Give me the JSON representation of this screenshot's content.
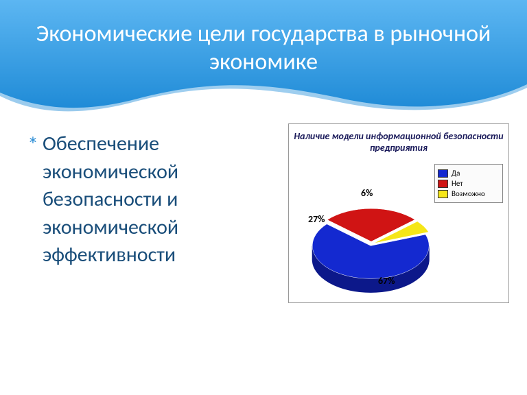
{
  "slide": {
    "title": "Экономические цели государства в рыночной экономике",
    "title_color": "#ffffff",
    "title_fontsize": 34,
    "header_gradient_top": "#5cb6f2",
    "header_gradient_bottom": "#1e8ad6",
    "bullet_marker": "*",
    "bullet_marker_color": "#2f8fd6",
    "bullet_text": "Обеспечение экономической безопасности и экономической эффективности",
    "bullet_text_color": "#1a4e7a",
    "bullet_fontsize": 30
  },
  "chart": {
    "type": "pie",
    "is_3d": true,
    "title": "Наличие модели информационной безопасности предприятия",
    "title_fontsize": 14,
    "title_color": "#1a1a5a",
    "title_style": "bold italic",
    "background_color": "#ffffff",
    "border_color": "#999999",
    "legend": {
      "position": "right",
      "border_color": "#888888",
      "background": "#fbfbfb",
      "fontsize": 11,
      "items": [
        {
          "label": "Да",
          "color": "#1429d0"
        },
        {
          "label": "Нет",
          "color": "#d01414"
        },
        {
          "label": "Возможно",
          "color": "#f5e618"
        }
      ]
    },
    "slices": [
      {
        "label": "Да",
        "value": 67,
        "pct_text": "67%",
        "color": "#1429d0",
        "side_color": "#0c188a",
        "explode": 0.05
      },
      {
        "label": "Нет",
        "value": 27,
        "pct_text": "27%",
        "color": "#d01414",
        "side_color": "#8f0c0c",
        "explode": 0.08
      },
      {
        "label": "Возможно",
        "value": 6,
        "pct_text": "6%",
        "color": "#f5e618",
        "side_color": "#b8ab0e",
        "explode": 0.05
      }
    ],
    "pct_label_font": {
      "weight": "bold",
      "size": 14,
      "color": "#000000"
    }
  }
}
